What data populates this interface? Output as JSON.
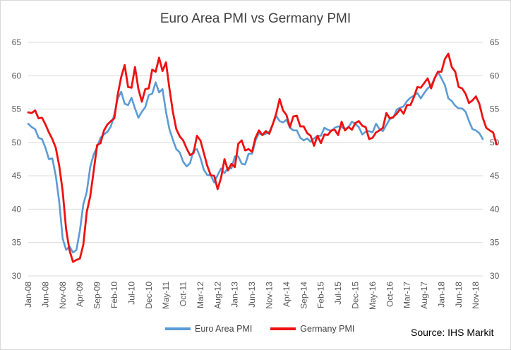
{
  "chart_data": {
    "type": "line",
    "title": "Euro Area PMI vs Germany PMI",
    "source": "Source: IHS Markit",
    "ylim": [
      30,
      65
    ],
    "y_ticks": [
      30,
      35,
      40,
      45,
      50,
      55,
      60,
      65
    ],
    "grid": "horizontal",
    "legend_position": "bottom",
    "x_tick_labels": [
      "Jan-08",
      "Jun-08",
      "Nov-08",
      "Apr-09",
      "Sep-09",
      "Feb-10",
      "Jul-10",
      "Dec-10",
      "May-11",
      "Oct-11",
      "Mar-12",
      "Aug-12",
      "Jan-13",
      "Jun-13",
      "Nov-13",
      "Apr-14",
      "Sep-14",
      "Feb-15",
      "Jul-15",
      "Dec-15",
      "May-16",
      "Oct-16",
      "Mar-17",
      "Aug-17",
      "Jan-18",
      "Jun-18",
      "Nov-18"
    ],
    "x_start": "2008-01",
    "x_end": "2019-01",
    "series": [
      {
        "name": "Euro Area PMI",
        "color": "#5b9bd5",
        "values": [
          52.8,
          52.3,
          52.0,
          50.7,
          50.5,
          49.2,
          47.5,
          47.6,
          45.0,
          41.1,
          35.6,
          33.9,
          34.4,
          33.5,
          33.9,
          36.8,
          40.7,
          42.6,
          46.3,
          48.2,
          49.3,
          50.7,
          51.2,
          51.6,
          52.4,
          54.2,
          56.6,
          57.6,
          55.8,
          55.6,
          56.7,
          55.1,
          53.7,
          54.6,
          55.3,
          57.1,
          57.3,
          59.0,
          57.5,
          58.0,
          54.6,
          52.0,
          50.4,
          49.0,
          48.5,
          47.1,
          46.4,
          46.9,
          48.8,
          49.0,
          47.7,
          45.9,
          45.1,
          45.1,
          44.0,
          45.1,
          46.1,
          45.4,
          46.2,
          46.1,
          47.9,
          47.9,
          46.8,
          46.7,
          48.3,
          48.3,
          50.3,
          51.4,
          51.1,
          51.3,
          51.6,
          52.7,
          54.0,
          53.2,
          53.0,
          53.4,
          52.2,
          51.8,
          51.8,
          50.7,
          50.3,
          50.6,
          50.1,
          50.6,
          51.0,
          51.0,
          52.2,
          51.9,
          51.7,
          52.2,
          52.4,
          52.3,
          52.0,
          52.3,
          53.1,
          52.8,
          52.3,
          51.2,
          51.6,
          51.7,
          51.5,
          52.8,
          52.0,
          51.7,
          52.6,
          53.5,
          53.7,
          54.9,
          55.2,
          55.4,
          56.2,
          56.7,
          57.0,
          57.4,
          56.6,
          57.4,
          58.1,
          58.5,
          59.6,
          60.6,
          59.6,
          58.6,
          56.6,
          56.2,
          55.5,
          55.1,
          55.1,
          54.6,
          53.2,
          52.0,
          51.8,
          51.4,
          50.5
        ]
      },
      {
        "name": "Germany PMI",
        "color": "#ee1111",
        "values": [
          54.5,
          54.4,
          54.8,
          53.6,
          53.7,
          52.7,
          51.5,
          50.5,
          49.2,
          46.5,
          42.7,
          37.0,
          33.8,
          32.1,
          32.4,
          32.6,
          34.7,
          39.6,
          41.9,
          45.7,
          49.6,
          49.9,
          51.8,
          52.7,
          53.2,
          53.6,
          57.2,
          59.8,
          61.6,
          58.3,
          58.2,
          61.3,
          58.0,
          56.1,
          58.0,
          58.1,
          60.9,
          60.6,
          62.7,
          60.7,
          62.0,
          58.1,
          54.6,
          52.0,
          50.9,
          50.3,
          49.1,
          48.1,
          48.4,
          51.0,
          50.3,
          48.4,
          46.5,
          45.1,
          45.0,
          43.0,
          44.7,
          47.5,
          45.8,
          46.8,
          46.3,
          49.8,
          50.3,
          48.8,
          49.0,
          48.6,
          50.7,
          51.8,
          51.1,
          51.7,
          51.3,
          52.7,
          54.3,
          56.5,
          54.8,
          54.1,
          52.3,
          53.9,
          54.0,
          52.4,
          52.4,
          51.4,
          51.0,
          49.5,
          51.0,
          49.9,
          51.2,
          51.1,
          51.8,
          51.9,
          51.1,
          53.1,
          51.8,
          52.3,
          51.9,
          52.9,
          53.2,
          52.5,
          52.3,
          50.5,
          50.7,
          51.5,
          51.8,
          52.2,
          54.4,
          53.6,
          53.8,
          54.3,
          55.0,
          54.3,
          55.6,
          55.6,
          56.8,
          58.3,
          58.2,
          58.9,
          59.6,
          58.1,
          59.6,
          60.6,
          60.6,
          62.5,
          63.3,
          61.3,
          60.6,
          58.3,
          58.1,
          57.3,
          55.9,
          56.3,
          56.9,
          55.8,
          53.7,
          52.2,
          51.8,
          51.5,
          49.7
        ]
      }
    ]
  }
}
